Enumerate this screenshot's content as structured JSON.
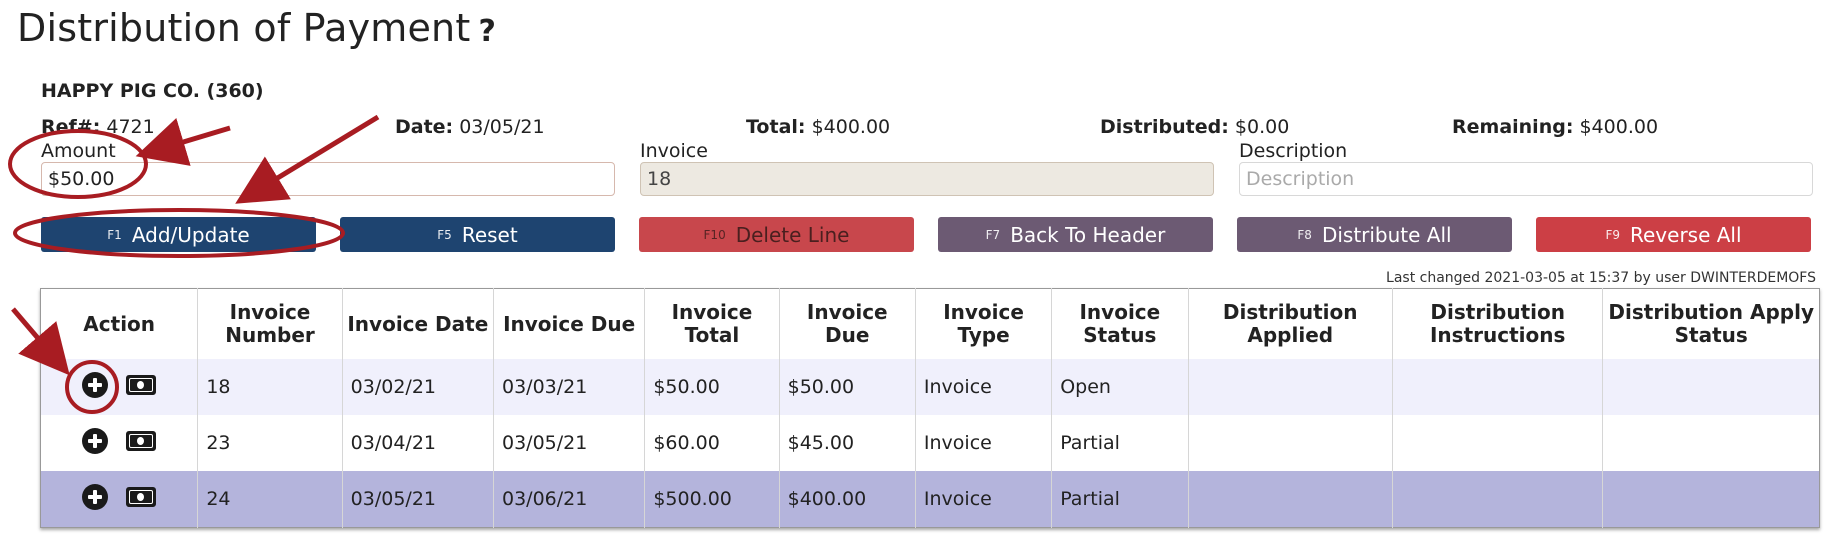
{
  "page": {
    "title": "Distribution of Payment",
    "help": "?"
  },
  "customer": {
    "name": "HAPPY PIG CO. (360)"
  },
  "header_info": {
    "ref_label": "Ref#:",
    "ref_value": "4721",
    "date_label": "Date:",
    "date_value": "03/05/21",
    "total_label": "Total:",
    "total_value": "$400.00",
    "distributed_label": "Distributed:",
    "distributed_value": "$0.00",
    "remaining_label": "Remaining:",
    "remaining_value": "$400.00"
  },
  "form": {
    "amount_label": "Amount",
    "amount_value": "$50.00",
    "invoice_label": "Invoice",
    "invoice_value": "18",
    "description_label": "Description",
    "description_placeholder": "Description"
  },
  "buttons": {
    "add_update": {
      "key": "F1",
      "label": "Add/Update"
    },
    "reset": {
      "key": "F5",
      "label": "Reset"
    },
    "delete_line": {
      "key": "F10",
      "label": "Delete Line"
    },
    "back_to_header": {
      "key": "F7",
      "label": "Back To Header"
    },
    "distribute_all": {
      "key": "F8",
      "label": "Distribute All"
    },
    "reverse_all": {
      "key": "F9",
      "label": "Reverse All"
    }
  },
  "last_changed": "Last changed 2021-03-05 at 15:37 by user DWINTERDEMOFS",
  "table": {
    "headers": [
      "Action",
      "Invoice Number",
      "Invoice Date",
      "Invoice Due",
      "Invoice Total",
      "Invoice Due",
      "Invoice Type",
      "Invoice Status",
      "Distribution Applied",
      "Distribution Instructions",
      "Distribution Apply Status"
    ],
    "rows": [
      {
        "number": "18",
        "date": "03/02/21",
        "due_date": "03/03/21",
        "total": "$50.00",
        "due": "$50.00",
        "type": "Invoice",
        "status": "Open",
        "applied": "",
        "instructions": "",
        "apply_status": ""
      },
      {
        "number": "23",
        "date": "03/04/21",
        "due_date": "03/05/21",
        "total": "$60.00",
        "due": "$45.00",
        "type": "Invoice",
        "status": "Partial",
        "applied": "",
        "instructions": "",
        "apply_status": ""
      },
      {
        "number": "24",
        "date": "03/05/21",
        "due_date": "03/06/21",
        "total": "$500.00",
        "due": "$400.00",
        "type": "Invoice",
        "status": "Partial",
        "applied": "",
        "instructions": "",
        "apply_status": ""
      }
    ]
  },
  "colors": {
    "primary_button": "#1e4470",
    "delete_button": "#c8474c",
    "neutral_button": "#6c5a73",
    "reverse_button": "#cc3f45",
    "annotation": "#a81c22",
    "row_highlight": "#b4b4dc"
  },
  "icons": {
    "add": "plus-circle-icon",
    "pay": "money-bill-icon"
  }
}
